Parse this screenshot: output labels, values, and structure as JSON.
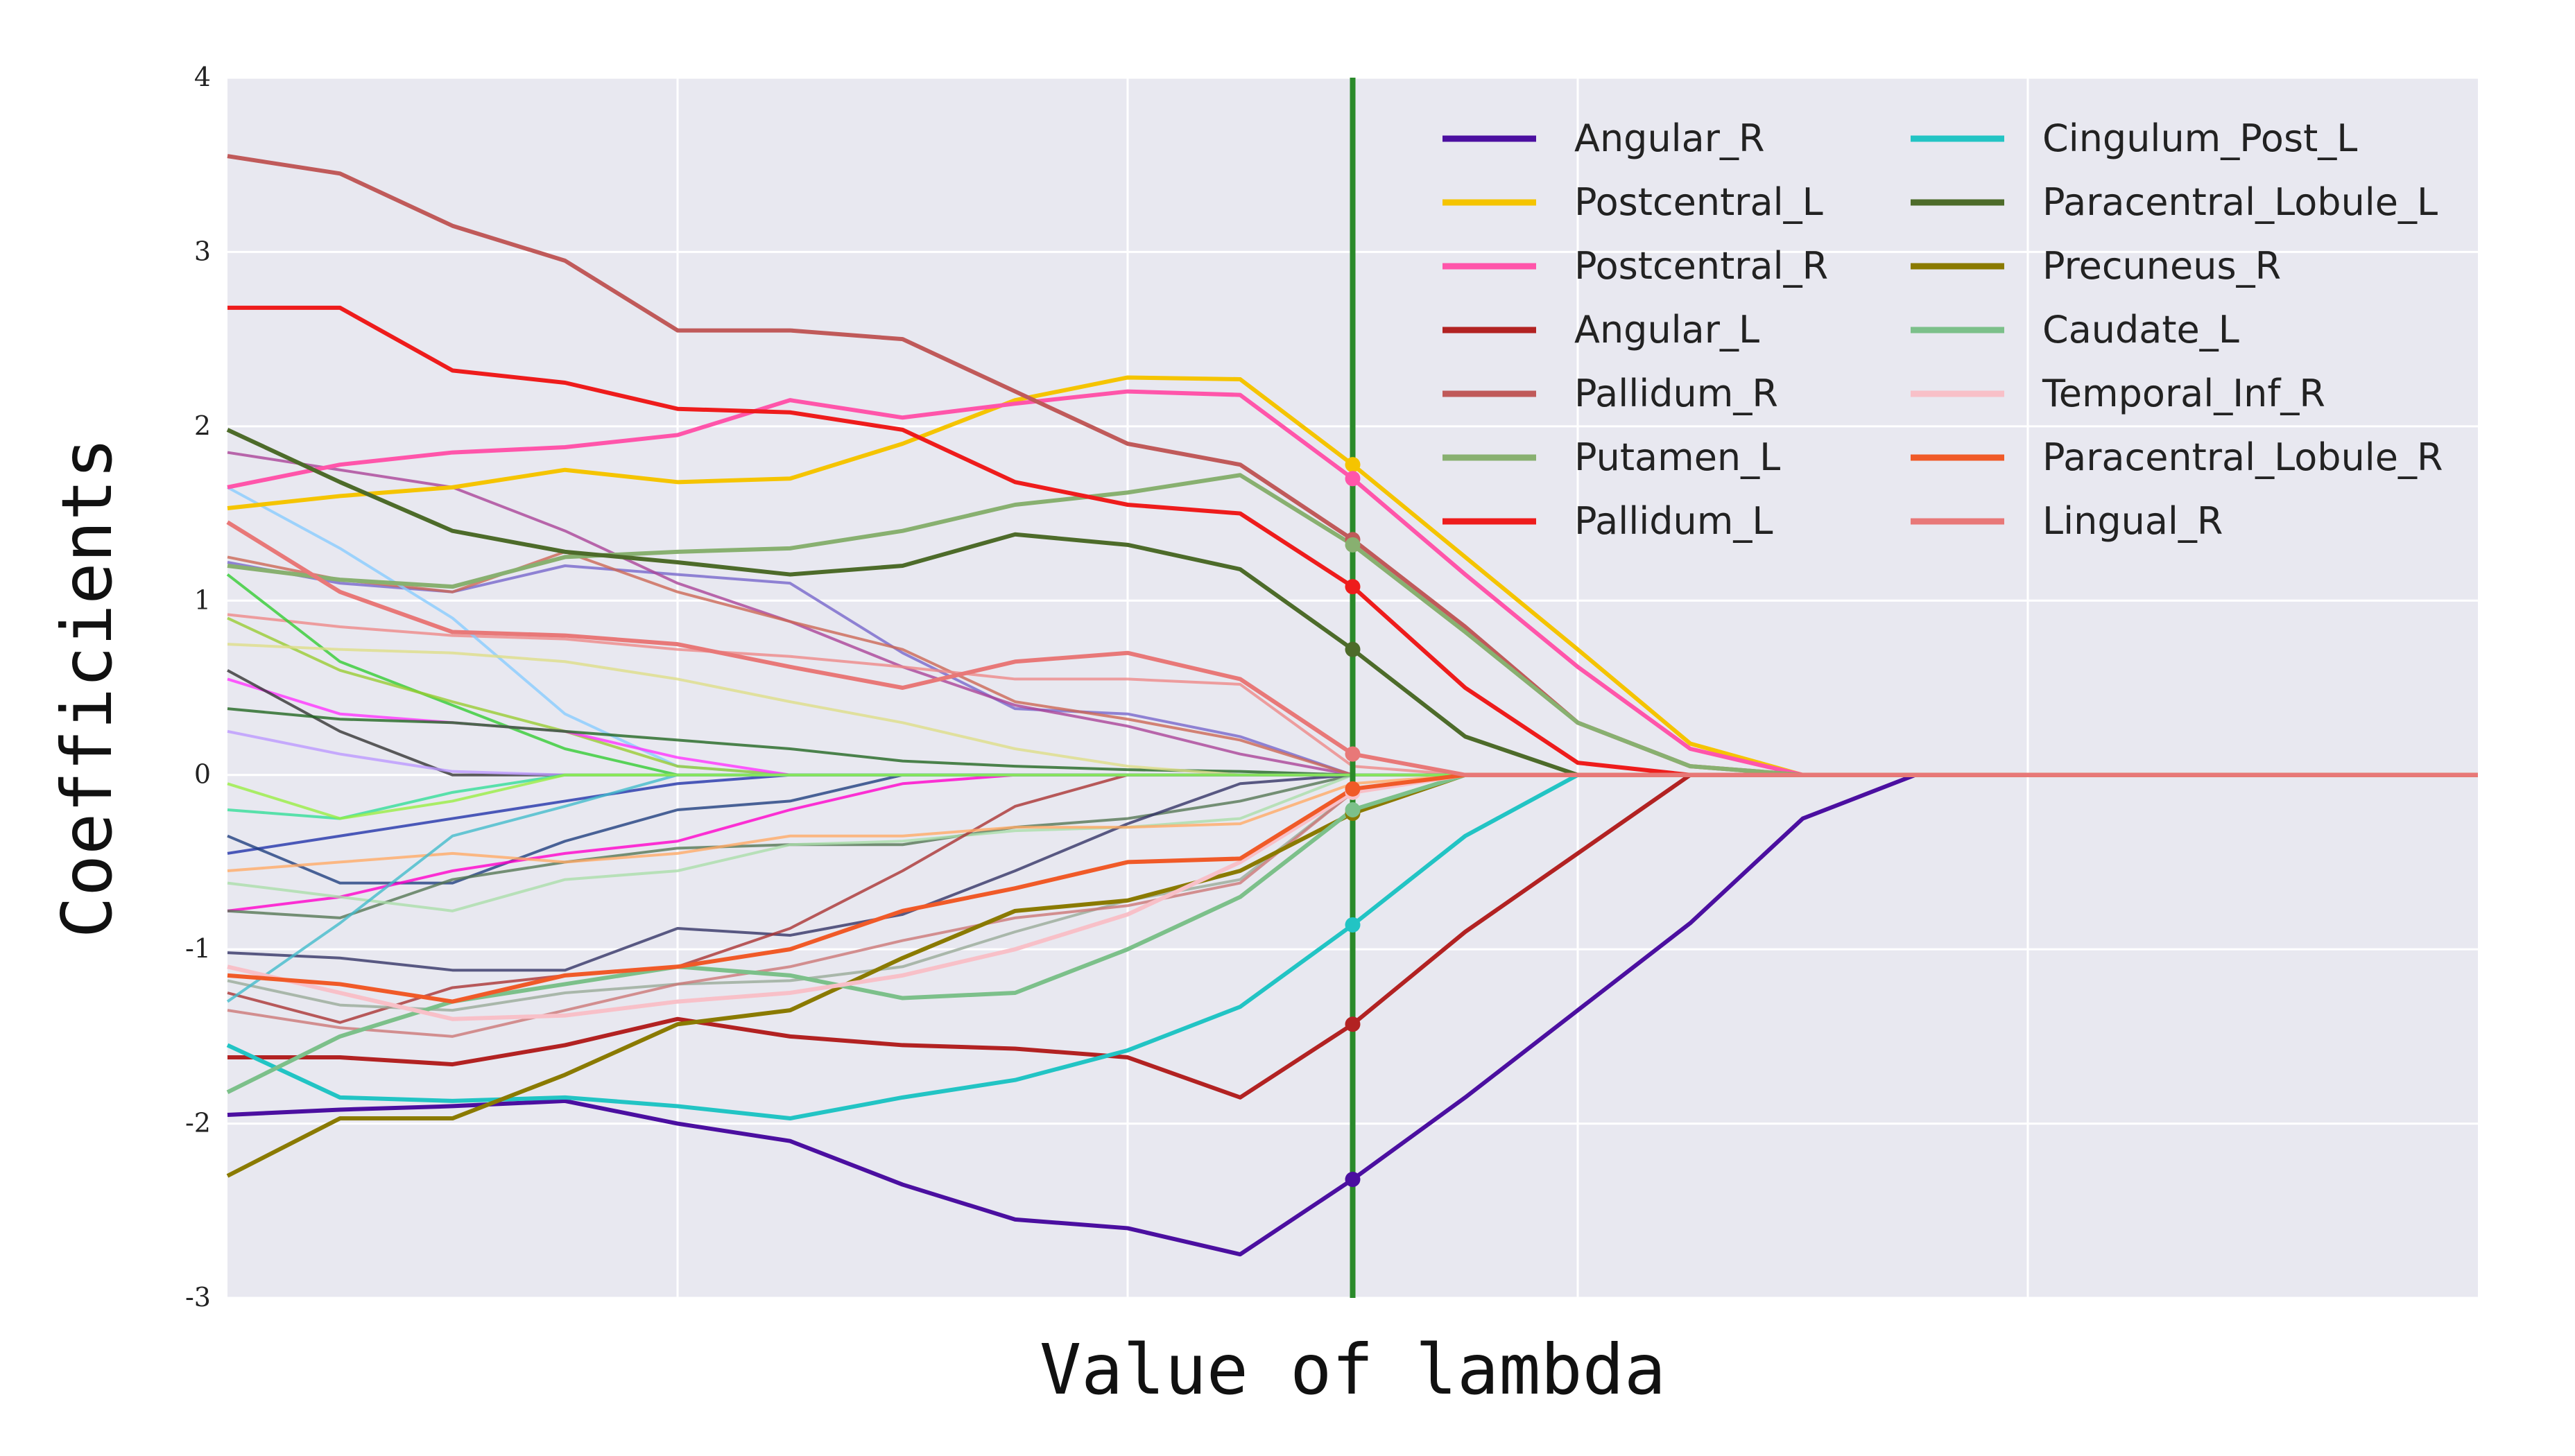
{
  "chart_data": {
    "type": "line",
    "title": "",
    "xlabel": "Value of lambda",
    "ylabel": "Coefficients",
    "xlim": [
      0,
      20
    ],
    "ylim": [
      -3,
      4
    ],
    "yticks": [
      "4",
      "3",
      "2",
      "1",
      "0",
      "-1",
      "-2",
      "-3"
    ],
    "grid": true,
    "legend_position": "top-right",
    "selected_lambda": 10,
    "x": [
      0,
      1,
      2,
      3,
      4,
      5,
      6,
      7,
      8,
      9,
      10,
      11,
      12,
      13,
      14,
      15,
      16,
      17,
      18,
      19,
      20
    ],
    "series": [
      {
        "name": "Angular_R",
        "color": "#4b0fa0",
        "values": [
          -1.95,
          -1.92,
          -1.9,
          -1.87,
          -2.0,
          -2.1,
          -2.35,
          -2.55,
          -2.6,
          -2.75,
          -2.32,
          -1.85,
          -1.35,
          -0.85,
          -0.25,
          0.0,
          0.0,
          0.0,
          0.0,
          0.0,
          0.0
        ]
      },
      {
        "name": "Postcentral_L",
        "color": "#f5c400",
        "values": [
          1.53,
          1.6,
          1.65,
          1.75,
          1.68,
          1.7,
          1.9,
          2.15,
          2.28,
          2.27,
          1.78,
          1.25,
          0.72,
          0.18,
          0.0,
          0.0,
          0.0,
          0.0,
          0.0,
          0.0,
          0.0
        ]
      },
      {
        "name": "Postcentral_R",
        "color": "#ff55aa",
        "values": [
          1.65,
          1.78,
          1.85,
          1.88,
          1.95,
          2.15,
          2.05,
          2.13,
          2.2,
          2.18,
          1.7,
          1.15,
          0.62,
          0.15,
          0.0,
          0.0,
          0.0,
          0.0,
          0.0,
          0.0,
          0.0
        ]
      },
      {
        "name": "Angular_L",
        "color": "#b22222",
        "values": [
          -1.62,
          -1.62,
          -1.66,
          -1.55,
          -1.4,
          -1.5,
          -1.55,
          -1.57,
          -1.62,
          -1.85,
          -1.43,
          -0.9,
          -0.45,
          0.0,
          0.0,
          0.0,
          0.0,
          0.0,
          0.0,
          0.0,
          0.0
        ]
      },
      {
        "name": "Pallidum_R",
        "color": "#c05a5a",
        "values": [
          3.55,
          3.45,
          3.15,
          2.95,
          2.55,
          2.55,
          2.5,
          2.2,
          1.9,
          1.78,
          1.35,
          0.85,
          0.3,
          0.05,
          0.0,
          0.0,
          0.0,
          0.0,
          0.0,
          0.0,
          0.0
        ]
      },
      {
        "name": "Putamen_L",
        "color": "#88b070",
        "values": [
          1.2,
          1.12,
          1.08,
          1.25,
          1.28,
          1.3,
          1.4,
          1.55,
          1.62,
          1.72,
          1.32,
          0.82,
          0.3,
          0.05,
          0.0,
          0.0,
          0.0,
          0.0,
          0.0,
          0.0,
          0.0
        ]
      },
      {
        "name": "Pallidum_L",
        "color": "#ee1c1c",
        "values": [
          2.68,
          2.68,
          2.32,
          2.25,
          2.1,
          2.08,
          1.98,
          1.68,
          1.55,
          1.5,
          1.08,
          0.5,
          0.07,
          0.0,
          0.0,
          0.0,
          0.0,
          0.0,
          0.0,
          0.0,
          0.0
        ]
      },
      {
        "name": "Cingulum_Post_L",
        "color": "#22c4c4",
        "values": [
          -1.55,
          -1.85,
          -1.87,
          -1.85,
          -1.9,
          -1.97,
          -1.85,
          -1.75,
          -1.58,
          -1.33,
          -0.86,
          -0.35,
          0.0,
          0.0,
          0.0,
          0.0,
          0.0,
          0.0,
          0.0,
          0.0,
          0.0
        ]
      },
      {
        "name": "Paracentral_Lobule_L",
        "color": "#4d6b2a",
        "values": [
          1.98,
          1.68,
          1.4,
          1.28,
          1.22,
          1.15,
          1.2,
          1.38,
          1.32,
          1.18,
          0.72,
          0.22,
          0.0,
          0.0,
          0.0,
          0.0,
          0.0,
          0.0,
          0.0,
          0.0,
          0.0
        ]
      },
      {
        "name": "Precuneus_R",
        "color": "#8a7a00",
        "values": [
          -2.3,
          -1.97,
          -1.97,
          -1.72,
          -1.43,
          -1.35,
          -1.05,
          -0.78,
          -0.72,
          -0.55,
          -0.22,
          0.0,
          0.0,
          0.0,
          0.0,
          0.0,
          0.0,
          0.0,
          0.0,
          0.0,
          0.0
        ]
      },
      {
        "name": "Caudate_L",
        "color": "#7cc08a",
        "values": [
          -1.82,
          -1.5,
          -1.3,
          -1.2,
          -1.1,
          -1.15,
          -1.28,
          -1.25,
          -1.0,
          -0.7,
          -0.2,
          0.0,
          0.0,
          0.0,
          0.0,
          0.0,
          0.0,
          0.0,
          0.0,
          0.0,
          0.0
        ]
      },
      {
        "name": "Temporal_Inf_R",
        "color": "#f8c0c8",
        "values": [
          -1.1,
          -1.25,
          -1.4,
          -1.38,
          -1.3,
          -1.25,
          -1.15,
          -1.0,
          -0.8,
          -0.5,
          -0.1,
          0.0,
          0.0,
          0.0,
          0.0,
          0.0,
          0.0,
          0.0,
          0.0,
          0.0,
          0.0
        ]
      },
      {
        "name": "Paracentral_Lobule_R",
        "color": "#f05a28",
        "values": [
          -1.15,
          -1.2,
          -1.3,
          -1.15,
          -1.1,
          -1.0,
          -0.78,
          -0.65,
          -0.5,
          -0.48,
          -0.08,
          0.0,
          0.0,
          0.0,
          0.0,
          0.0,
          0.0,
          0.0,
          0.0,
          0.0,
          0.0
        ]
      },
      {
        "name": "Lingual_R",
        "color": "#e87878",
        "values": [
          1.45,
          1.05,
          0.82,
          0.8,
          0.75,
          0.62,
          0.5,
          0.65,
          0.7,
          0.55,
          0.12,
          0.0,
          0.0,
          0.0,
          0.0,
          0.0,
          0.0,
          0.0,
          0.0,
          0.0,
          0.0
        ]
      }
    ],
    "background_series": [
      {
        "color": "#7766cc",
        "values": [
          1.22,
          1.1,
          1.05,
          1.2,
          1.15,
          1.1,
          0.7,
          0.38,
          0.35,
          0.22,
          0.0,
          0.0,
          0.0,
          0.0,
          0.0,
          0.0,
          0.0,
          0.0,
          0.0,
          0.0,
          0.0
        ]
      },
      {
        "color": "#aa4499",
        "values": [
          1.85,
          1.75,
          1.65,
          1.4,
          1.1,
          0.88,
          0.62,
          0.4,
          0.28,
          0.12,
          0.0,
          0.0,
          0.0,
          0.0,
          0.0,
          0.0,
          0.0,
          0.0,
          0.0,
          0.0,
          0.0
        ]
      },
      {
        "color": "#cc6655",
        "values": [
          1.25,
          1.12,
          1.05,
          1.28,
          1.05,
          0.88,
          0.72,
          0.42,
          0.32,
          0.2,
          0.0,
          0.0,
          0.0,
          0.0,
          0.0,
          0.0,
          0.0,
          0.0,
          0.0,
          0.0,
          0.0
        ]
      },
      {
        "color": "#ee8888",
        "values": [
          0.92,
          0.85,
          0.8,
          0.78,
          0.72,
          0.68,
          0.62,
          0.55,
          0.55,
          0.52,
          0.05,
          0.0,
          0.0,
          0.0,
          0.0,
          0.0,
          0.0,
          0.0,
          0.0,
          0.0,
          0.0
        ]
      },
      {
        "color": "#88ccff",
        "values": [
          1.65,
          1.3,
          0.9,
          0.35,
          0.05,
          0.0,
          0.0,
          0.0,
          0.0,
          0.0,
          0.0,
          0.0,
          0.0,
          0.0,
          0.0,
          0.0,
          0.0,
          0.0,
          0.0,
          0.0,
          0.0
        ]
      },
      {
        "color": "#33cc33",
        "values": [
          1.15,
          0.65,
          0.4,
          0.15,
          0.0,
          0.0,
          0.0,
          0.0,
          0.0,
          0.0,
          0.0,
          0.0,
          0.0,
          0.0,
          0.0,
          0.0,
          0.0,
          0.0,
          0.0,
          0.0,
          0.0
        ]
      },
      {
        "color": "#99cc33",
        "values": [
          0.9,
          0.6,
          0.42,
          0.25,
          0.05,
          0.0,
          0.0,
          0.0,
          0.0,
          0.0,
          0.0,
          0.0,
          0.0,
          0.0,
          0.0,
          0.0,
          0.0,
          0.0,
          0.0,
          0.0,
          0.0
        ]
      },
      {
        "color": "#ff33ff",
        "values": [
          0.55,
          0.35,
          0.3,
          0.25,
          0.1,
          0.0,
          0.0,
          0.0,
          0.0,
          0.0,
          0.0,
          0.0,
          0.0,
          0.0,
          0.0,
          0.0,
          0.0,
          0.0,
          0.0,
          0.0,
          0.0
        ]
      },
      {
        "color": "#333333",
        "values": [
          0.6,
          0.25,
          0.0,
          0.0,
          0.0,
          0.0,
          0.0,
          0.0,
          0.0,
          0.0,
          0.0,
          0.0,
          0.0,
          0.0,
          0.0,
          0.0,
          0.0,
          0.0,
          0.0,
          0.0,
          0.0
        ]
      },
      {
        "color": "#226622",
        "values": [
          0.38,
          0.32,
          0.3,
          0.25,
          0.2,
          0.15,
          0.08,
          0.05,
          0.03,
          0.02,
          0.0,
          0.0,
          0.0,
          0.0,
          0.0,
          0.0,
          0.0,
          0.0,
          0.0,
          0.0,
          0.0
        ]
      },
      {
        "color": "#dddd88",
        "values": [
          0.75,
          0.72,
          0.7,
          0.65,
          0.55,
          0.42,
          0.3,
          0.15,
          0.05,
          0.0,
          0.0,
          0.0,
          0.0,
          0.0,
          0.0,
          0.0,
          0.0,
          0.0,
          0.0,
          0.0,
          0.0
        ]
      },
      {
        "color": "#bb99ff",
        "values": [
          0.25,
          0.12,
          0.02,
          0.0,
          0.0,
          0.0,
          0.0,
          0.0,
          0.0,
          0.0,
          0.0,
          0.0,
          0.0,
          0.0,
          0.0,
          0.0,
          0.0,
          0.0,
          0.0,
          0.0,
          0.0
        ]
      },
      {
        "color": "#2233aa",
        "values": [
          -0.45,
          -0.35,
          -0.25,
          -0.15,
          -0.05,
          0.0,
          0.0,
          0.0,
          0.0,
          0.0,
          0.0,
          0.0,
          0.0,
          0.0,
          0.0,
          0.0,
          0.0,
          0.0,
          0.0,
          0.0,
          0.0
        ]
      },
      {
        "color": "#1f3f7f",
        "values": [
          -0.35,
          -0.62,
          -0.62,
          -0.38,
          -0.2,
          -0.15,
          0.0,
          0.0,
          0.0,
          0.0,
          0.0,
          0.0,
          0.0,
          0.0,
          0.0,
          0.0,
          0.0,
          0.0,
          0.0,
          0.0,
          0.0
        ]
      },
      {
        "color": "#ff00cc",
        "values": [
          -0.78,
          -0.7,
          -0.55,
          -0.45,
          -0.38,
          -0.2,
          -0.05,
          0.0,
          0.0,
          0.0,
          0.0,
          0.0,
          0.0,
          0.0,
          0.0,
          0.0,
          0.0,
          0.0,
          0.0,
          0.0,
          0.0
        ]
      },
      {
        "color": "#557755",
        "values": [
          -0.78,
          -0.82,
          -0.6,
          -0.5,
          -0.42,
          -0.4,
          -0.4,
          -0.3,
          -0.25,
          -0.15,
          0.0,
          0.0,
          0.0,
          0.0,
          0.0,
          0.0,
          0.0,
          0.0,
          0.0,
          0.0,
          0.0
        ]
      },
      {
        "color": "#aaddaa",
        "values": [
          -0.62,
          -0.7,
          -0.78,
          -0.6,
          -0.55,
          -0.4,
          -0.38,
          -0.32,
          -0.3,
          -0.25,
          0.0,
          0.0,
          0.0,
          0.0,
          0.0,
          0.0,
          0.0,
          0.0,
          0.0,
          0.0,
          0.0
        ]
      },
      {
        "color": "#333366",
        "values": [
          -1.02,
          -1.05,
          -1.12,
          -1.12,
          -0.88,
          -0.92,
          -0.8,
          -0.55,
          -0.28,
          -0.05,
          0.0,
          0.0,
          0.0,
          0.0,
          0.0,
          0.0,
          0.0,
          0.0,
          0.0,
          0.0,
          0.0
        ]
      },
      {
        "color": "#aa3333",
        "values": [
          -1.25,
          -1.42,
          -1.22,
          -1.15,
          -1.1,
          -0.88,
          -0.55,
          -0.18,
          0.0,
          0.0,
          0.0,
          0.0,
          0.0,
          0.0,
          0.0,
          0.0,
          0.0,
          0.0,
          0.0,
          0.0,
          0.0
        ]
      },
      {
        "color": "#99aa99",
        "values": [
          -1.18,
          -1.32,
          -1.35,
          -1.25,
          -1.2,
          -1.18,
          -1.1,
          -0.9,
          -0.72,
          -0.6,
          -0.1,
          0.0,
          0.0,
          0.0,
          0.0,
          0.0,
          0.0,
          0.0,
          0.0,
          0.0,
          0.0
        ]
      },
      {
        "color": "#cc7777",
        "values": [
          -1.35,
          -1.45,
          -1.5,
          -1.35,
          -1.2,
          -1.1,
          -0.95,
          -0.82,
          -0.75,
          -0.62,
          -0.1,
          0.0,
          0.0,
          0.0,
          0.0,
          0.0,
          0.0,
          0.0,
          0.0,
          0.0,
          0.0
        ]
      },
      {
        "color": "#ffaa66",
        "values": [
          -0.55,
          -0.5,
          -0.45,
          -0.5,
          -0.45,
          -0.35,
          -0.35,
          -0.3,
          -0.3,
          -0.28,
          -0.05,
          0.0,
          0.0,
          0.0,
          0.0,
          0.0,
          0.0,
          0.0,
          0.0,
          0.0,
          0.0
        ]
      },
      {
        "color": "#33dd99",
        "values": [
          -0.2,
          -0.25,
          -0.1,
          0.0,
          0.0,
          0.0,
          0.0,
          0.0,
          0.0,
          0.0,
          0.0,
          0.0,
          0.0,
          0.0,
          0.0,
          0.0,
          0.0,
          0.0,
          0.0,
          0.0,
          0.0
        ]
      },
      {
        "color": "#44bbcc",
        "values": [
          -1.3,
          -0.85,
          -0.35,
          -0.18,
          0.0,
          0.0,
          0.0,
          0.0,
          0.0,
          0.0,
          0.0,
          0.0,
          0.0,
          0.0,
          0.0,
          0.0,
          0.0,
          0.0,
          0.0,
          0.0,
          0.0
        ]
      },
      {
        "color": "#99ee44",
        "values": [
          -0.05,
          -0.25,
          -0.15,
          0.0,
          0.0,
          0.0,
          0.0,
          0.0,
          0.0,
          0.0,
          0.0,
          0.0,
          0.0,
          0.0,
          0.0,
          0.0,
          0.0,
          0.0,
          0.0,
          0.0,
          0.0
        ]
      }
    ]
  }
}
